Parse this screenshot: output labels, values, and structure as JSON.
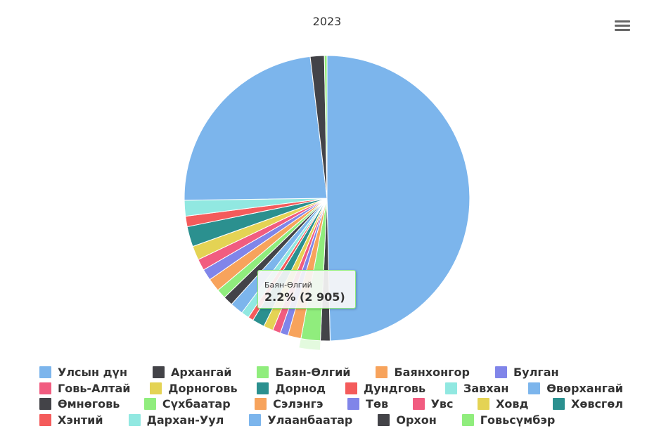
{
  "chart_data": {
    "type": "pie",
    "title": "2023",
    "unit": "%",
    "start_angle_deg": 0,
    "categories": [
      "Улсын дүн",
      "Архангай",
      "Баян-Өлгий",
      "Баянхонгор",
      "Булган",
      "Говь-Алтай",
      "Дорноговь",
      "Дорнод",
      "Дундговь",
      "Завхан",
      "Өвөрхангай",
      "Өмнөговь",
      "Сүхбаатар",
      "Сэлэнгэ",
      "Төв",
      "Увс",
      "Ховд",
      "Хөвсгөл",
      "Хэнтий",
      "Дархан-Уул",
      "Улаанбаатар",
      "Орхон",
      "Говьсүмбэр"
    ],
    "values": [
      50.0,
      1.1,
      2.2,
      1.5,
      0.9,
      0.9,
      1.1,
      1.4,
      0.6,
      0.9,
      1.5,
      1.1,
      1.1,
      1.5,
      1.3,
      1.3,
      1.6,
      2.3,
      1.2,
      1.8,
      23.5,
      1.6,
      0.3
    ],
    "colors": [
      "#7cb5ec",
      "#434348",
      "#90ed7d",
      "#f7a35c",
      "#8085e9",
      "#f15c80",
      "#e4d354",
      "#2b908f",
      "#f45b5b",
      "#91e8e1",
      "#7cb5ec",
      "#434348",
      "#90ed7d",
      "#f7a35c",
      "#8085e9",
      "#f15c80",
      "#e4d354",
      "#2b908f",
      "#f45b5b",
      "#91e8e1",
      "#7cb5ec",
      "#434348",
      "#90ed7d"
    ],
    "hovered_index": 2,
    "legend_position": "bottom"
  },
  "tooltip": {
    "name": "Баян-Өлгий",
    "value": "2.2% (2 905)"
  },
  "legend_rows": [
    [
      "Улсын дүн",
      "Архангай",
      "Баян-Өлгий",
      "Баянхонгор",
      "Булган"
    ],
    [
      "Говь-Алтай",
      "Дорноговь",
      "Дорнод",
      "Дундговь",
      "Завхан",
      "Өвөрхангай"
    ],
    [
      "Өмнөговь",
      "Сүхбаатар",
      "Сэлэнгэ",
      "Төв",
      "Увс",
      "Ховд",
      "Хөвсгөл"
    ],
    [
      "Хэнтий",
      "Дархан-Уул",
      "Улаанбаатар",
      "Орхон",
      "Говьсүмбэр"
    ]
  ],
  "menu": {
    "icon": "hamburger-menu-icon"
  }
}
